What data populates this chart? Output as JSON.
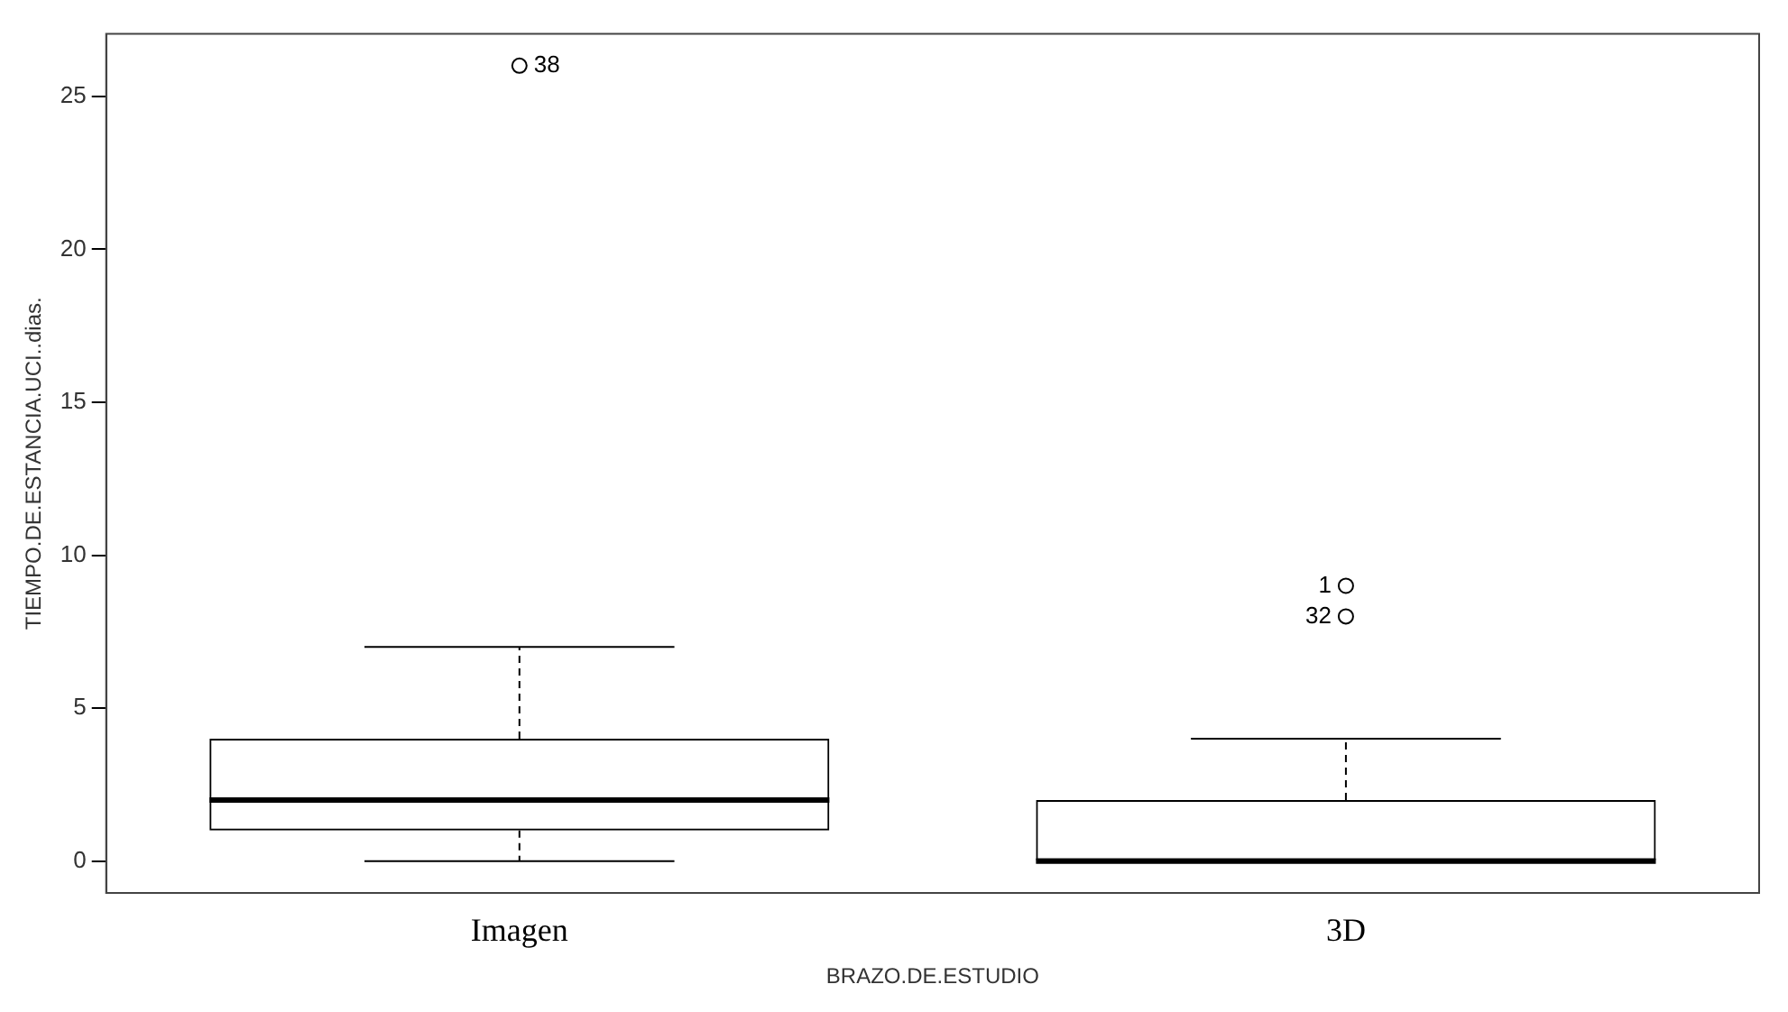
{
  "chart_data": {
    "type": "box",
    "xlabel": "BRAZO.DE.ESTUDIO",
    "ylabel": "TIEMPO.DE.ESTANCIA.UCI..dias.",
    "categories": [
      "Imagen",
      "3D"
    ],
    "boxes": [
      {
        "low": 0,
        "q1": 1,
        "median": 2,
        "q3": 4,
        "high": 7,
        "outliers": [
          26
        ]
      },
      {
        "low": 0,
        "q1": 0,
        "median": 0,
        "q3": 2,
        "high": 4,
        "outliers": [
          8,
          9
        ]
      }
    ],
    "ylim": [
      -1.04,
      27.04
    ],
    "yticks": [
      0,
      5,
      10,
      15,
      20,
      25
    ],
    "grid": false,
    "legend": false,
    "marker": "circle",
    "annotations": [
      "38",
      "32",
      "1"
    ]
  }
}
